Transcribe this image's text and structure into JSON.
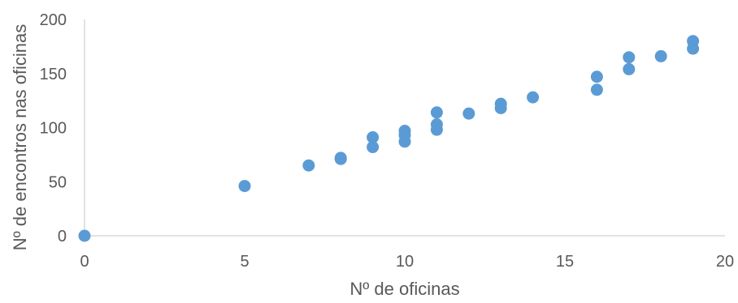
{
  "chart_data": {
    "type": "scatter",
    "xlabel": "Nº de oficinas",
    "ylabel": "Nº de encontros nas oficinas",
    "xlim": [
      0,
      20
    ],
    "ylim": [
      0,
      200
    ],
    "x_ticks": [
      "0",
      "5",
      "10",
      "15",
      "20"
    ],
    "y_ticks": [
      "0",
      "50",
      "100",
      "150",
      "200"
    ],
    "grid": false,
    "legend": "none",
    "marker_color": "#5b9bd5",
    "points": [
      {
        "x": 0,
        "y": 0
      },
      {
        "x": 5,
        "y": 46
      },
      {
        "x": 7,
        "y": 65
      },
      {
        "x": 8,
        "y": 71
      },
      {
        "x": 8,
        "y": 72
      },
      {
        "x": 9,
        "y": 82
      },
      {
        "x": 9,
        "y": 91
      },
      {
        "x": 10,
        "y": 87
      },
      {
        "x": 10,
        "y": 93
      },
      {
        "x": 10,
        "y": 97
      },
      {
        "x": 11,
        "y": 98
      },
      {
        "x": 11,
        "y": 103
      },
      {
        "x": 11,
        "y": 114
      },
      {
        "x": 12,
        "y": 113
      },
      {
        "x": 13,
        "y": 118
      },
      {
        "x": 13,
        "y": 122
      },
      {
        "x": 14,
        "y": 128
      },
      {
        "x": 16,
        "y": 135
      },
      {
        "x": 16,
        "y": 147
      },
      {
        "x": 17,
        "y": 154
      },
      {
        "x": 17,
        "y": 165
      },
      {
        "x": 18,
        "y": 166
      },
      {
        "x": 19,
        "y": 173
      },
      {
        "x": 19,
        "y": 180
      }
    ]
  }
}
